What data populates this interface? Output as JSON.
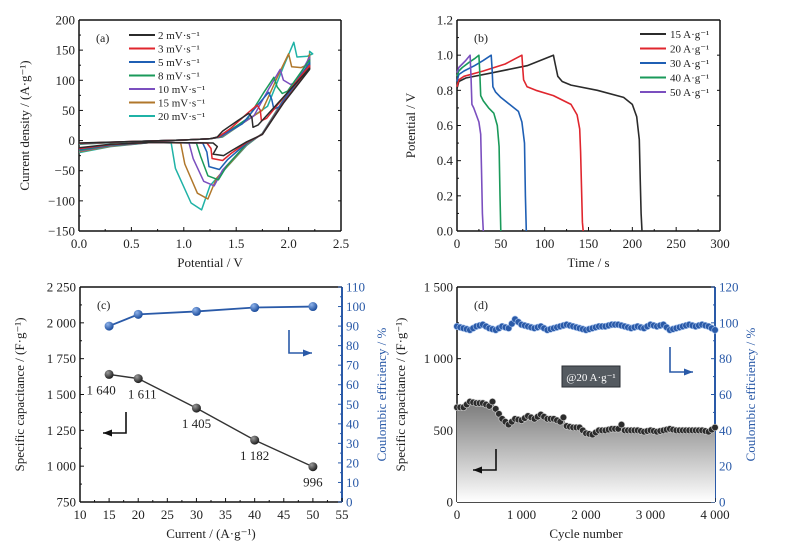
{
  "chart_data": [
    {
      "id": "a",
      "type": "line",
      "panel_label": "(a)",
      "title": "",
      "xlabel": "Potential / V",
      "ylabel": "Current density / (A·g⁻¹)",
      "xlim": [
        0.0,
        2.5
      ],
      "ylim": [
        -150,
        200
      ],
      "xticks": [
        "0.0",
        "0.5",
        "1.0",
        "1.5",
        "2.0",
        "2.5"
      ],
      "yticks": [
        "−150",
        "−100",
        "−50",
        "0",
        "50",
        "100",
        "150",
        "200"
      ],
      "xtick_values": [
        0,
        0.5,
        1.0,
        1.5,
        2.0,
        2.5
      ],
      "ytick_values": [
        -150,
        -100,
        -50,
        0,
        50,
        100,
        150,
        200
      ],
      "legend_position": "top-left",
      "series": [
        {
          "name": "2 mV·s⁻¹",
          "color": "#2b2b2b",
          "anodic_peak": [
            1.62,
            45
          ],
          "cathodic_peak": [
            1.38,
            -25
          ],
          "reduction_onset": 1.28,
          "ox_dip": [
            1.66,
            22
          ]
        },
        {
          "name": "3 mV·s⁻¹",
          "color": "#e0262e",
          "anodic_peak": [
            1.7,
            59
          ],
          "cathodic_peak": [
            1.37,
            -33
          ],
          "reduction_onset": 1.22,
          "ox_dip": [
            1.74,
            33
          ]
        },
        {
          "name": "5 mV·s⁻¹",
          "color": "#1f5fb4",
          "anodic_peak": [
            1.81,
            80
          ],
          "cathodic_peak": [
            1.34,
            -48
          ],
          "reduction_onset": 1.18,
          "ox_dip": [
            1.86,
            52
          ]
        },
        {
          "name": "8 mV·s⁻¹",
          "color": "#1a9a5a",
          "anodic_peak": [
            1.86,
            105
          ],
          "cathodic_peak": [
            1.33,
            -65
          ],
          "reduction_onset": 1.12,
          "ox_dip": [
            1.94,
            78
          ]
        },
        {
          "name": "10 mV·s⁻¹",
          "color": "#7b4fbf",
          "anodic_peak": [
            1.92,
            118
          ],
          "cathodic_peak": [
            1.29,
            -75
          ],
          "reduction_onset": 1.05,
          "ox_dip": [
            2.02,
            93
          ]
        },
        {
          "name": "15 mV·s⁻¹",
          "color": "#b0772b",
          "anodic_peak": [
            2.0,
            144
          ],
          "cathodic_peak": [
            1.23,
            -97
          ],
          "reduction_onset": 0.97,
          "ox_dip": [
            2.12,
            121
          ]
        },
        {
          "name": "20 mV·s⁻¹",
          "color": "#1fb2a6",
          "anodic_peak": [
            2.05,
            163
          ],
          "cathodic_peak": [
            1.17,
            -115
          ],
          "reduction_onset": 0.88,
          "ox_dip": [
            2.18,
            140
          ]
        }
      ]
    },
    {
      "id": "b",
      "type": "line",
      "panel_label": "(b)",
      "title": "",
      "xlabel": "Time / s",
      "ylabel": "Potential / V",
      "xlim": [
        0,
        300
      ],
      "ylim": [
        0.0,
        1.2
      ],
      "xticks": [
        "0",
        "50",
        "100",
        "150",
        "200",
        "250",
        "300"
      ],
      "yticks": [
        "0.0",
        "0.2",
        "0.4",
        "0.6",
        "0.8",
        "1.0",
        "1.2"
      ],
      "xtick_values": [
        0,
        50,
        100,
        150,
        200,
        250,
        300
      ],
      "ytick_values": [
        0,
        0.2,
        0.4,
        0.6,
        0.8,
        1.0,
        1.2
      ],
      "legend_position": "top-right",
      "series": [
        {
          "name": "15 A·g⁻¹",
          "color": "#2b2b2b",
          "x": [
            0,
            2,
            10,
            40,
            80,
            110,
            112,
            115,
            120,
            130,
            160,
            190,
            200,
            205,
            208,
            209,
            210,
            211
          ],
          "y": [
            0.81,
            0.85,
            0.87,
            0.9,
            0.94,
            1.0,
            0.95,
            0.88,
            0.85,
            0.83,
            0.8,
            0.76,
            0.72,
            0.65,
            0.52,
            0.3,
            0.1,
            0.0
          ]
        },
        {
          "name": "20 A·g⁻¹",
          "color": "#e0262e",
          "x": [
            0,
            2,
            8,
            30,
            55,
            74,
            75,
            76,
            80,
            90,
            110,
            130,
            137,
            140,
            141,
            142,
            143,
            144
          ],
          "y": [
            0.82,
            0.86,
            0.88,
            0.91,
            0.95,
            1.0,
            0.92,
            0.86,
            0.82,
            0.8,
            0.77,
            0.72,
            0.66,
            0.58,
            0.45,
            0.25,
            0.05,
            0.0
          ]
        },
        {
          "name": "30 A·g⁻¹",
          "color": "#1f5fb4",
          "x": [
            0,
            2,
            8,
            20,
            30,
            39,
            40,
            41,
            44,
            50,
            60,
            70,
            74,
            77,
            78,
            79
          ],
          "y": [
            0.85,
            0.89,
            0.91,
            0.94,
            0.97,
            1.0,
            0.92,
            0.82,
            0.79,
            0.76,
            0.72,
            0.68,
            0.62,
            0.5,
            0.2,
            0.0
          ]
        },
        {
          "name": "40 A·g⁻¹",
          "color": "#1a9a5a",
          "x": [
            0,
            2,
            6,
            14,
            20,
            25,
            26,
            27,
            30,
            36,
            42,
            46,
            48,
            49,
            50
          ],
          "y": [
            0.88,
            0.91,
            0.93,
            0.96,
            0.98,
            1.0,
            0.9,
            0.77,
            0.74,
            0.7,
            0.67,
            0.6,
            0.48,
            0.2,
            0.0
          ]
        },
        {
          "name": "50 A·g⁻¹",
          "color": "#7b4fbf",
          "x": [
            0,
            2,
            6,
            10,
            15,
            16,
            17,
            19,
            22,
            25,
            27,
            28,
            29,
            30
          ],
          "y": [
            0.9,
            0.93,
            0.95,
            0.97,
            1.0,
            0.88,
            0.72,
            0.7,
            0.66,
            0.62,
            0.55,
            0.35,
            0.1,
            0.0
          ]
        }
      ]
    },
    {
      "id": "c",
      "type": "line",
      "panel_label": "(c)",
      "title": "",
      "xlabel": "Current / (A·g⁻¹)",
      "ylabel": "Specific capacitance / (F·g⁻¹)",
      "y2label": "Coulombic efficiency / %",
      "xlim": [
        10,
        55
      ],
      "ylim": [
        750,
        2250
      ],
      "y2lim": [
        0,
        110
      ],
      "xticks": [
        "10",
        "15",
        "20",
        "25",
        "30",
        "35",
        "40",
        "45",
        "50",
        "55"
      ],
      "yticks": [
        "750",
        "1 000",
        "1 250",
        "1 500",
        "1 750",
        "2 000",
        "2 250"
      ],
      "y2ticks": [
        "0",
        "10",
        "20",
        "30",
        "40",
        "50",
        "60",
        "70",
        "80",
        "90",
        "100",
        "110"
      ],
      "xtick_values": [
        10,
        15,
        20,
        25,
        30,
        35,
        40,
        45,
        50,
        55
      ],
      "ytick_values": [
        750,
        1000,
        1250,
        1500,
        1750,
        2000,
        2250
      ],
      "y2tick_values": [
        0,
        10,
        20,
        30,
        40,
        50,
        60,
        70,
        80,
        90,
        100,
        110
      ],
      "series": [
        {
          "name": "Specific capacitance",
          "axis": "left",
          "color": "#333333",
          "x": [
            15,
            20,
            30,
            40,
            50
          ],
          "y": [
            1640,
            1611,
            1405,
            1182,
            996
          ],
          "labels": [
            "1 640",
            "1 611",
            "1 405",
            "1 182",
            "996"
          ]
        },
        {
          "name": "Coulombic efficiency",
          "axis": "right",
          "color": "#2a5aa8",
          "x": [
            15,
            20,
            30,
            40,
            50
          ],
          "y": [
            90,
            96,
            97.5,
            99.5,
            100
          ]
        }
      ]
    },
    {
      "id": "d",
      "type": "scatter",
      "panel_label": "(d)",
      "title": "",
      "annotation": "@20 A·g⁻¹",
      "xlabel": "Cycle number",
      "ylabel": "Specific capacitance / (F·g⁻¹)",
      "y2label": "Coulombic efficiency / %",
      "xlim": [
        0,
        4000
      ],
      "ylim": [
        0,
        1500
      ],
      "y2lim": [
        0,
        120
      ],
      "xticks": [
        "0",
        "1 000",
        "2 000",
        "3 000",
        "4 000"
      ],
      "yticks": [
        "0",
        "500",
        "1 000",
        "1 500"
      ],
      "y2ticks": [
        "0",
        "20",
        "40",
        "60",
        "80",
        "100",
        "120"
      ],
      "xtick_values": [
        0,
        1000,
        2000,
        3000,
        4000
      ],
      "ytick_values": [
        0,
        500,
        1000,
        1500
      ],
      "y2tick_values": [
        0,
        20,
        40,
        60,
        80,
        100,
        120
      ],
      "series": [
        {
          "name": "Specific capacitance",
          "axis": "left",
          "color": "#3a3a3a",
          "x": [
            0,
            100,
            200,
            300,
            400,
            500,
            550,
            600,
            700,
            800,
            900,
            1000,
            1100,
            1200,
            1300,
            1400,
            1500,
            1600,
            1650,
            1700,
            1800,
            1900,
            2000,
            2100,
            2200,
            2300,
            2400,
            2500,
            2550,
            2600,
            2700,
            2800,
            2900,
            3000,
            3100,
            3200,
            3300,
            3400,
            3500,
            3600,
            3700,
            3800,
            3900,
            4000
          ],
          "y": [
            660,
            660,
            700,
            690,
            690,
            670,
            700,
            650,
            580,
            540,
            580,
            570,
            600,
            580,
            610,
            580,
            580,
            560,
            590,
            530,
            520,
            520,
            480,
            470,
            500,
            500,
            510,
            510,
            540,
            500,
            500,
            500,
            490,
            500,
            490,
            500,
            510,
            500,
            500,
            500,
            500,
            500,
            490,
            520
          ]
        },
        {
          "name": "Coulombic efficiency",
          "axis": "right",
          "color": "#2a5aa8",
          "x": [
            0,
            100,
            200,
            300,
            400,
            500,
            600,
            700,
            800,
            900,
            1000,
            1100,
            1200,
            1300,
            1400,
            1500,
            1600,
            1700,
            1800,
            1900,
            2000,
            2100,
            2200,
            2300,
            2400,
            2500,
            2600,
            2700,
            2800,
            2900,
            3000,
            3100,
            3200,
            3300,
            3400,
            3500,
            3600,
            3700,
            3800,
            3900,
            4000
          ],
          "y": [
            98,
            97,
            96,
            98,
            99,
            97,
            96,
            98,
            97,
            102,
            99,
            98,
            97,
            98,
            96,
            97,
            98,
            99,
            98,
            97,
            96,
            97,
            98,
            98,
            99,
            99,
            98,
            97,
            98,
            97,
            99,
            98,
            99,
            96,
            97,
            98,
            99,
            98,
            99,
            98,
            96
          ]
        }
      ]
    }
  ]
}
